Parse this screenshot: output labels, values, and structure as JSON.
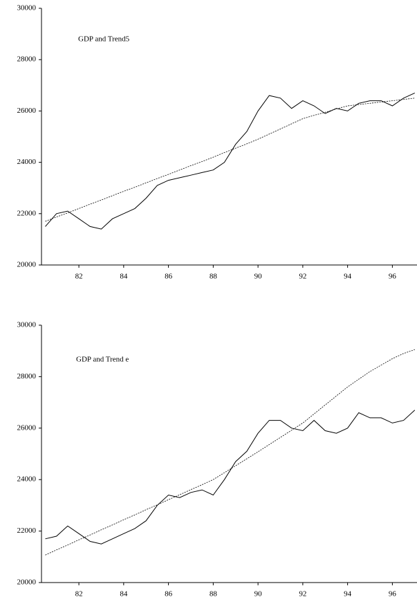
{
  "chart_data": [
    {
      "type": "line",
      "title": "GDP and Trend5",
      "x": [
        80.5,
        81,
        81.5,
        82,
        82.5,
        83,
        83.5,
        84,
        84.5,
        85,
        85.5,
        86,
        86.5,
        87,
        87.5,
        88,
        88.5,
        89,
        89.5,
        90,
        90.5,
        91,
        91.5,
        92,
        92.5,
        93,
        93.5,
        94,
        94.5,
        95,
        95.5,
        96,
        96.5,
        97
      ],
      "series": [
        {
          "name": "GDP",
          "color": "#000000",
          "dashed": false,
          "values": [
            21500,
            22000,
            22100,
            21800,
            21500,
            21400,
            21800,
            22000,
            22200,
            22600,
            23100,
            23300,
            23400,
            23500,
            23600,
            23700,
            24000,
            24700,
            25200,
            26000,
            26600,
            26500,
            26100,
            26400,
            26200,
            25900,
            26100,
            26000,
            26300,
            26400,
            26400,
            26200,
            26500,
            26700
          ]
        },
        {
          "name": "Trend5",
          "color": "#000000",
          "dashed": true,
          "values": [
            21700,
            21870,
            22030,
            22200,
            22370,
            22530,
            22700,
            22870,
            23030,
            23200,
            23370,
            23530,
            23700,
            23870,
            24030,
            24200,
            24380,
            24550,
            24720,
            24900,
            25100,
            25300,
            25500,
            25700,
            25830,
            25950,
            26080,
            26200,
            26250,
            26300,
            26350,
            26400,
            26450,
            26500
          ]
        }
      ],
      "xlim": [
        80.33,
        97.1
      ],
      "xticks": [
        82,
        84,
        86,
        88,
        90,
        92,
        94,
        96
      ],
      "ylim": [
        20000,
        30000
      ],
      "yticks": [
        20000,
        22000,
        24000,
        26000,
        28000,
        30000
      ]
    },
    {
      "type": "line",
      "title": "GDP and Trend e",
      "x": [
        80.5,
        81,
        81.5,
        82,
        82.5,
        83,
        83.5,
        84,
        84.5,
        85,
        85.5,
        86,
        86.5,
        87,
        87.5,
        88,
        88.5,
        89,
        89.5,
        90,
        90.5,
        91,
        91.5,
        92,
        92.5,
        93,
        93.5,
        94,
        94.5,
        95,
        95.5,
        96,
        96.5,
        97
      ],
      "series": [
        {
          "name": "GDP",
          "color": "#000000",
          "dashed": false,
          "values": [
            21700,
            21800,
            22200,
            21900,
            21600,
            21500,
            21700,
            21900,
            22100,
            22400,
            23000,
            23400,
            23300,
            23500,
            23600,
            23400,
            24000,
            24700,
            25100,
            25800,
            26300,
            26300,
            26000,
            25900,
            26300,
            25900,
            25800,
            26000,
            26600,
            26400,
            26400,
            26200,
            26300,
            26700
          ]
        },
        {
          "name": "Trend e",
          "color": "#000000",
          "dashed": true,
          "values": [
            21070,
            21270,
            21460,
            21660,
            21850,
            22050,
            22240,
            22440,
            22630,
            22830,
            23020,
            23220,
            23410,
            23610,
            23800,
            24000,
            24270,
            24540,
            24810,
            25080,
            25360,
            25640,
            25920,
            26200,
            26550,
            26900,
            27250,
            27600,
            27900,
            28200,
            28450,
            28700,
            28900,
            29050
          ]
        }
      ],
      "xlim": [
        80.33,
        97.1
      ],
      "xticks": [
        82,
        84,
        86,
        88,
        90,
        92,
        94,
        96
      ],
      "ylim": [
        20000,
        30000
      ],
      "yticks": [
        20000,
        22000,
        24000,
        26000,
        28000,
        30000
      ]
    }
  ]
}
